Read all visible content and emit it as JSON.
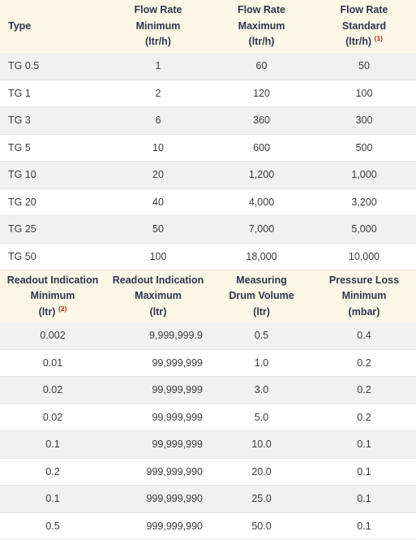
{
  "table1": {
    "headers": [
      {
        "lines": [
          "Type"
        ],
        "note": ""
      },
      {
        "lines": [
          "Flow Rate",
          "Minimum",
          "(ltr/h)"
        ],
        "note": ""
      },
      {
        "lines": [
          "Flow Rate",
          "Maximum",
          "(ltr/h)"
        ],
        "note": ""
      },
      {
        "lines": [
          "Flow Rate",
          "Standard",
          "(ltr/h)"
        ],
        "note": "(1)"
      }
    ],
    "rows": [
      [
        "TG 0.5",
        "1",
        "60",
        "50"
      ],
      [
        "TG 1",
        "2",
        "120",
        "100"
      ],
      [
        "TG 3",
        "6",
        "360",
        "300"
      ],
      [
        "TG 5",
        "10",
        "600",
        "500"
      ],
      [
        "TG 10",
        "20",
        "1,200",
        "1,000"
      ],
      [
        "TG 20",
        "40",
        "4,000",
        "3,200"
      ],
      [
        "TG 25",
        "50",
        "7,000",
        "5,000"
      ],
      [
        "TG 50",
        "100",
        "18,000",
        "10,000"
      ]
    ]
  },
  "table2": {
    "headers": [
      {
        "lines": [
          "Readout Indication",
          "Minimum",
          "(ltr)"
        ],
        "note": "(2)"
      },
      {
        "lines": [
          "Readout Indication",
          "Maximum",
          "(ltr)"
        ],
        "note": ""
      },
      {
        "lines": [
          "Measuring",
          "Drum Volume",
          "(ltr)"
        ],
        "note": ""
      },
      {
        "lines": [
          "Pressure Loss",
          "Minimum",
          "(mbar)"
        ],
        "note": ""
      }
    ],
    "rows": [
      [
        "0.002",
        "9,999,999.9",
        "0.5",
        "0.4"
      ],
      [
        "0.01",
        "99,999,999",
        "1.0",
        "0.2"
      ],
      [
        "0.02",
        "99,999,999",
        "3.0",
        "0.2"
      ],
      [
        "0.02",
        "99,999,999",
        "5.0",
        "0.2"
      ],
      [
        "0.1",
        "99,999,999",
        "10.0",
        "0.1"
      ],
      [
        "0.2",
        "999,999,990",
        "20.0",
        "0.1"
      ],
      [
        "0.1",
        "999,999,990",
        "25.0",
        "0.1"
      ],
      [
        "0.5",
        "999,999,990",
        "50.0",
        "0.1"
      ]
    ]
  }
}
